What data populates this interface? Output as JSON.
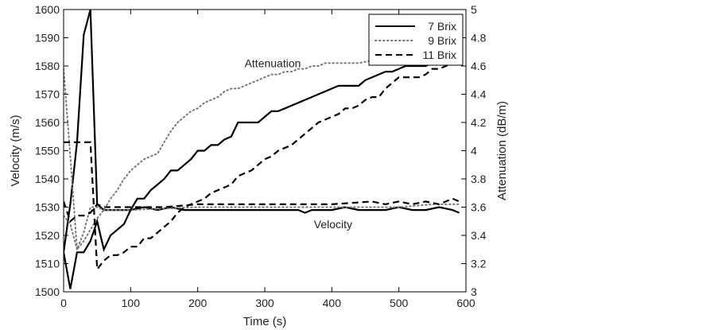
{
  "chart_data": {
    "type": "line",
    "title": "",
    "xlabel": "Time (s)",
    "ylabel_left": "Velocity (m/s)",
    "ylabel_right": "Attenuation (dB/m)",
    "xlim": [
      0,
      600
    ],
    "ylim_left": [
      1500,
      1600
    ],
    "ylim_right": [
      3,
      5
    ],
    "xticks": [
      0,
      100,
      200,
      300,
      400,
      500,
      600
    ],
    "yticks_left": [
      1500,
      1510,
      1520,
      1530,
      1540,
      1550,
      1560,
      1570,
      1580,
      1590,
      1600
    ],
    "yticks_right": [
      3,
      3.2,
      3.4,
      3.6,
      3.8,
      4,
      4.2,
      4.4,
      4.6,
      4.8,
      5
    ],
    "annotations": [
      {
        "text": "Attenuation",
        "x": 300,
        "y": 1581
      },
      {
        "text": "Velocity",
        "x": 390,
        "y": 1524
      }
    ],
    "legend": {
      "placement": "top-right",
      "entries": [
        {
          "label": "7 Brix",
          "style": "solid"
        },
        {
          "label": "9 Brix",
          "style": "dotted"
        },
        {
          "label": "11 Brix",
          "style": "dashed"
        }
      ]
    },
    "series": [
      {
        "name": "7 Brix",
        "quantity": "velocity",
        "axis": "left",
        "style": "solid",
        "x": [
          0,
          10,
          20,
          30,
          40,
          50,
          60,
          100,
          120,
          140,
          160,
          180,
          200,
          240,
          300,
          350,
          360,
          370,
          400,
          420,
          440,
          480,
          500,
          520,
          540,
          560,
          580,
          590
        ],
        "y": [
          1514,
          1531,
          1553,
          1591,
          1600,
          1531,
          1529,
          1529,
          1530,
          1529,
          1530,
          1529,
          1529,
          1529,
          1529,
          1529,
          1528,
          1529,
          1529,
          1530,
          1529,
          1529,
          1530,
          1529,
          1529,
          1530,
          1529,
          1528
        ]
      },
      {
        "name": "9 Brix",
        "quantity": "velocity",
        "axis": "left",
        "style": "dotted",
        "x": [
          0,
          10,
          20,
          30,
          40,
          50,
          60,
          100,
          200,
          300,
          400,
          500,
          550,
          580,
          590
        ],
        "y": [
          1527,
          1524,
          1515,
          1521,
          1530,
          1530,
          1529,
          1529,
          1530,
          1530,
          1530,
          1530,
          1531,
          1531,
          1531
        ]
      },
      {
        "name": "11 Brix",
        "quantity": "velocity",
        "axis": "left",
        "style": "dashed",
        "x": [
          0,
          10,
          20,
          30,
          40,
          50,
          60,
          100,
          150,
          200,
          300,
          400,
          460,
          480,
          500,
          520,
          540,
          560,
          570,
          580,
          590
        ],
        "y": [
          1532,
          1525,
          1527,
          1527,
          1528,
          1531,
          1530,
          1530,
          1530,
          1531,
          1531,
          1531,
          1532,
          1531,
          1532,
          1531,
          1532,
          1531,
          1532,
          1533,
          1532
        ]
      },
      {
        "name": "7 Brix",
        "quantity": "attenuation",
        "axis": "right",
        "style": "solid",
        "x": [
          0,
          10,
          20,
          30,
          40,
          50,
          60,
          70,
          90,
          100,
          110,
          120,
          130,
          140,
          150,
          160,
          170,
          180,
          190,
          200,
          210,
          220,
          230,
          240,
          250,
          260,
          270,
          280,
          290,
          300,
          310,
          320,
          330,
          340,
          350,
          360,
          370,
          380,
          390,
          400,
          410,
          420,
          430,
          440,
          450,
          460,
          470,
          480,
          490,
          500,
          510,
          520,
          530,
          540,
          550,
          560,
          570,
          580,
          590
        ],
        "y": [
          3.28,
          3.02,
          3.28,
          3.28,
          3.36,
          3.5,
          3.3,
          3.4,
          3.48,
          3.58,
          3.66,
          3.66,
          3.72,
          3.76,
          3.8,
          3.86,
          3.86,
          3.9,
          3.94,
          4.0,
          4.0,
          4.04,
          4.04,
          4.08,
          4.1,
          4.2,
          4.2,
          4.2,
          4.2,
          4.24,
          4.28,
          4.28,
          4.3,
          4.32,
          4.34,
          4.36,
          4.38,
          4.4,
          4.42,
          4.44,
          4.46,
          4.46,
          4.46,
          4.46,
          4.5,
          4.52,
          4.54,
          4.56,
          4.56,
          4.58,
          4.6,
          4.6,
          4.6,
          4.6,
          4.62,
          4.64,
          4.64,
          4.64,
          4.66
        ]
      },
      {
        "name": "9 Brix",
        "quantity": "attenuation",
        "axis": "right",
        "style": "dotted",
        "x": [
          0,
          10,
          20,
          30,
          40,
          50,
          60,
          70,
          80,
          90,
          100,
          110,
          120,
          130,
          140,
          150,
          160,
          170,
          180,
          190,
          200,
          210,
          220,
          230,
          240,
          250,
          260,
          270,
          280,
          290,
          300,
          310,
          320,
          330,
          340,
          350,
          360,
          370,
          380,
          390,
          400,
          420,
          440,
          460,
          470,
          480,
          490,
          500
        ],
        "y": [
          4.58,
          3.96,
          3.3,
          3.36,
          3.44,
          3.52,
          3.58,
          3.66,
          3.72,
          3.8,
          3.86,
          3.9,
          3.94,
          3.96,
          3.98,
          4.06,
          4.14,
          4.2,
          4.24,
          4.28,
          4.3,
          4.34,
          4.36,
          4.38,
          4.42,
          4.44,
          4.44,
          4.46,
          4.48,
          4.5,
          4.52,
          4.54,
          4.54,
          4.56,
          4.56,
          4.58,
          4.58,
          4.6,
          4.6,
          4.62,
          4.62,
          4.62,
          4.62,
          4.64,
          4.64,
          4.66,
          4.66,
          4.68
        ]
      },
      {
        "name": "11 Brix",
        "quantity": "attenuation",
        "axis": "right",
        "style": "dashed",
        "x": [
          0,
          10,
          20,
          30,
          40,
          50,
          60,
          70,
          80,
          90,
          100,
          110,
          120,
          130,
          140,
          150,
          160,
          170,
          180,
          190,
          200,
          210,
          220,
          230,
          240,
          250,
          260,
          270,
          280,
          290,
          300,
          310,
          320,
          330,
          340,
          350,
          360,
          370,
          380,
          390,
          400,
          410,
          420,
          430,
          440,
          450,
          460,
          470,
          480,
          490,
          500,
          510,
          520,
          530,
          540,
          550,
          560,
          570,
          580,
          590
        ],
        "y": [
          4.06,
          4.06,
          4.06,
          4.06,
          4.06,
          3.16,
          3.22,
          3.26,
          3.26,
          3.28,
          3.32,
          3.32,
          3.38,
          3.38,
          3.42,
          3.46,
          3.5,
          3.56,
          3.6,
          3.62,
          3.64,
          3.66,
          3.7,
          3.72,
          3.74,
          3.76,
          3.82,
          3.84,
          3.86,
          3.9,
          3.94,
          3.96,
          4.0,
          4.02,
          4.04,
          4.08,
          4.12,
          4.16,
          4.2,
          4.22,
          4.24,
          4.26,
          4.3,
          4.3,
          4.32,
          4.36,
          4.38,
          4.38,
          4.44,
          4.48,
          4.52,
          4.52,
          4.52,
          4.52,
          4.54,
          4.58,
          4.58,
          4.6,
          4.62,
          4.64
        ]
      }
    ]
  }
}
